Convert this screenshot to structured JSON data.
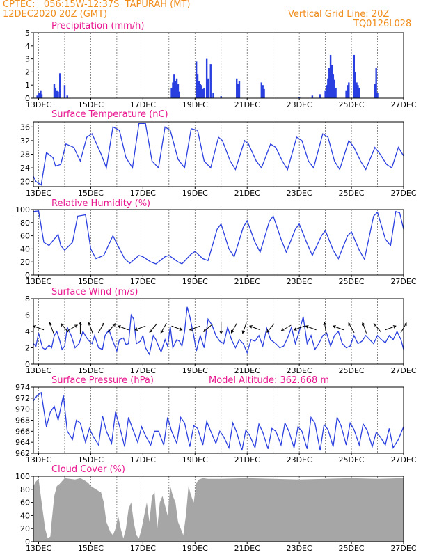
{
  "header": {
    "station": "CPTEC:   056:15W-12:37S  TAPURAH (MT)",
    "datetime": "12DEC2020 20Z (GMT)",
    "grid_note": "Vertical Grid Line: 20Z",
    "product_code": "TQ0126L028"
  },
  "colors": {
    "line": "#2a3fe0",
    "title": "#e8168f",
    "header": "#f08c1a",
    "cloud": "#a6a6a6"
  },
  "x_ticks": [
    "13DEC",
    "15DEC",
    "17DEC",
    "19DEC",
    "21DEC",
    "23DEC",
    "25DEC",
    "27DEC"
  ],
  "chart_data": [
    {
      "type": "bar",
      "title": "Precipitation (mm/h)",
      "ylim": [
        0,
        5
      ],
      "yticks": [
        "0",
        "1",
        "2",
        "3",
        "4",
        "5"
      ],
      "x_range_days": [
        12.8,
        27.0
      ],
      "grid": "vertical dashed at 20Z each day",
      "points": [
        [
          12.95,
          0.2
        ],
        [
          13.02,
          0.4
        ],
        [
          13.08,
          0.6
        ],
        [
          13.12,
          0.3
        ],
        [
          13.6,
          1.1
        ],
        [
          13.65,
          0.8
        ],
        [
          13.7,
          0.6
        ],
        [
          13.75,
          0.5
        ],
        [
          13.82,
          1.9
        ],
        [
          14.0,
          1.0
        ],
        [
          14.1,
          0.2
        ],
        [
          18.1,
          0.8
        ],
        [
          18.15,
          1.2
        ],
        [
          18.2,
          1.8
        ],
        [
          18.25,
          1.3
        ],
        [
          18.3,
          1.5
        ],
        [
          18.35,
          1.1
        ],
        [
          18.4,
          0.5
        ],
        [
          19.05,
          2.8
        ],
        [
          19.1,
          1.8
        ],
        [
          19.15,
          1.3
        ],
        [
          19.2,
          1.1
        ],
        [
          19.25,
          1.0
        ],
        [
          19.3,
          0.7
        ],
        [
          19.35,
          0.8
        ],
        [
          19.45,
          3.0
        ],
        [
          19.5,
          1.5
        ],
        [
          19.6,
          2.6
        ],
        [
          19.7,
          0.4
        ],
        [
          20.0,
          0.15
        ],
        [
          20.6,
          1.5
        ],
        [
          20.65,
          1.1
        ],
        [
          20.7,
          1.3
        ],
        [
          21.55,
          1.2
        ],
        [
          21.6,
          1.0
        ],
        [
          21.65,
          0.7
        ],
        [
          23.0,
          0.1
        ],
        [
          23.5,
          0.2
        ],
        [
          23.8,
          0.3
        ],
        [
          24.0,
          0.6
        ],
        [
          24.05,
          1.0
        ],
        [
          24.1,
          1.5
        ],
        [
          24.15,
          2.3
        ],
        [
          24.2,
          3.3
        ],
        [
          24.25,
          2.5
        ],
        [
          24.3,
          1.8
        ],
        [
          24.35,
          1.4
        ],
        [
          24.4,
          0.8
        ],
        [
          24.8,
          0.6
        ],
        [
          24.85,
          1.0
        ],
        [
          24.9,
          1.2
        ],
        [
          25.1,
          3.3
        ],
        [
          25.15,
          2.0
        ],
        [
          25.2,
          1.2
        ],
        [
          25.25,
          1.0
        ],
        [
          25.3,
          0.8
        ],
        [
          25.9,
          1.1
        ],
        [
          25.95,
          2.3
        ],
        [
          26.0,
          0.4
        ]
      ]
    },
    {
      "type": "line",
      "title": "Surface Temperature (nC)",
      "ylim": [
        18.5,
        37.5
      ],
      "yticks": [
        "20",
        "24",
        "28",
        "32",
        "36"
      ],
      "x": [
        12.8,
        12.9,
        13.1,
        13.3,
        13.55,
        13.65,
        13.85,
        14.05,
        14.35,
        14.6,
        14.85,
        15.05,
        15.4,
        15.6,
        15.85,
        16.1,
        16.35,
        16.6,
        16.85,
        17.1,
        17.35,
        17.6,
        17.85,
        18.05,
        18.35,
        18.6,
        18.85,
        19.1,
        19.35,
        19.6,
        19.9,
        20.05,
        20.35,
        20.55,
        20.9,
        21.05,
        21.35,
        21.55,
        21.9,
        22.1,
        22.35,
        22.55,
        22.9,
        23.1,
        23.35,
        23.55,
        23.9,
        24.1,
        24.35,
        24.55,
        24.9,
        25.1,
        25.35,
        25.55,
        25.9,
        26.1,
        26.35,
        26.55,
        26.8,
        27.0
      ],
      "values": [
        21.5,
        20,
        19,
        28.5,
        27,
        24.5,
        25,
        31,
        30,
        26,
        33,
        34,
        28,
        24,
        36,
        35,
        27,
        24,
        37,
        37,
        26,
        24,
        36,
        35,
        26.5,
        24,
        35.5,
        35,
        26,
        24,
        33,
        32,
        26,
        23.5,
        32,
        31,
        26,
        24,
        31,
        30,
        26,
        23.5,
        33,
        32,
        26,
        24,
        34,
        33,
        26,
        23.5,
        32,
        30,
        26,
        23.5,
        30,
        28,
        25,
        24,
        30,
        27.5
      ]
    },
    {
      "type": "line",
      "title": "Relative Humidity (%)",
      "ylim": [
        0,
        100
      ],
      "yticks": [
        "0",
        "20",
        "40",
        "60",
        "80",
        "100"
      ],
      "x": [
        12.8,
        13.0,
        13.2,
        13.4,
        13.6,
        13.75,
        13.85,
        14.0,
        14.3,
        14.5,
        14.8,
        15.0,
        15.2,
        15.5,
        15.85,
        16.0,
        16.3,
        16.5,
        16.85,
        17.0,
        17.3,
        17.5,
        17.85,
        18.0,
        18.35,
        18.5,
        18.85,
        19.0,
        19.3,
        19.5,
        19.85,
        20.0,
        20.3,
        20.5,
        20.85,
        21.0,
        21.3,
        21.5,
        21.85,
        22.0,
        22.3,
        22.5,
        22.85,
        23.0,
        23.3,
        23.5,
        23.85,
        24.0,
        24.3,
        24.5,
        24.85,
        25.0,
        25.3,
        25.5,
        25.85,
        26.0,
        26.3,
        26.5,
        26.7,
        26.85,
        27.0
      ],
      "values": [
        97,
        98,
        50,
        45,
        55,
        62,
        45,
        38,
        50,
        90,
        92,
        40,
        25,
        30,
        60,
        48,
        25,
        18,
        30,
        28,
        20,
        17,
        28,
        30,
        20,
        17,
        32,
        36,
        25,
        22,
        70,
        78,
        40,
        28,
        73,
        83,
        50,
        35,
        82,
        90,
        55,
        35,
        70,
        78,
        48,
        30,
        60,
        68,
        38,
        25,
        60,
        66,
        38,
        24,
        90,
        96,
        55,
        45,
        97,
        95,
        70
      ]
    },
    {
      "type": "line",
      "title": "Surface Wind (m/s)",
      "ylim": [
        0,
        8
      ],
      "yticks": [
        "0",
        "2",
        "4",
        "6",
        "8"
      ],
      "x": [
        12.8,
        12.9,
        13.0,
        13.15,
        13.25,
        13.4,
        13.5,
        13.6,
        13.7,
        13.8,
        13.9,
        14.0,
        14.1,
        14.25,
        14.4,
        14.55,
        14.7,
        14.85,
        14.95,
        15.05,
        15.15,
        15.3,
        15.45,
        15.55,
        15.7,
        15.85,
        16.0,
        16.1,
        16.25,
        16.35,
        16.45,
        16.55,
        16.65,
        16.75,
        16.9,
        17.0,
        17.1,
        17.25,
        17.4,
        17.5,
        17.6,
        17.7,
        17.85,
        17.95,
        18.05,
        18.15,
        18.3,
        18.4,
        18.5,
        18.6,
        18.7,
        18.8,
        18.95,
        19.05,
        19.2,
        19.35,
        19.5,
        19.65,
        19.8,
        19.95,
        20.1,
        20.25,
        20.4,
        20.55,
        20.7,
        20.85,
        21.0,
        21.15,
        21.3,
        21.45,
        21.6,
        21.75,
        21.9,
        22.1,
        22.25,
        22.4,
        22.55,
        22.7,
        22.85,
        23.0,
        23.15,
        23.3,
        23.45,
        23.6,
        23.75,
        23.9,
        24.05,
        24.2,
        24.35,
        24.5,
        24.65,
        24.8,
        24.95,
        25.1,
        25.25,
        25.4,
        25.55,
        25.7,
        25.85,
        26.0,
        26.15,
        26.3,
        26.45,
        26.6,
        26.75,
        26.9,
        27.0
      ],
      "values": [
        2.5,
        2.2,
        3.8,
        2.0,
        1.8,
        2.3,
        2.0,
        3.5,
        4.0,
        3.0,
        1.8,
        2.2,
        4.5,
        3.5,
        2.0,
        2.5,
        4.0,
        3.2,
        2.8,
        2.5,
        3.5,
        2.0,
        1.8,
        3.5,
        4.2,
        2.8,
        1.6,
        3.0,
        3.2,
        2.4,
        2.5,
        6.0,
        5.5,
        2.5,
        2.8,
        3.5,
        2.0,
        1.2,
        3.5,
        3.0,
        2.2,
        1.5,
        3.0,
        2.2,
        4.6,
        2.0,
        3.0,
        2.8,
        2.2,
        4.0,
        7.0,
        5.8,
        3.5,
        1.6,
        3.5,
        2.0,
        5.5,
        4.8,
        3.5,
        2.8,
        2.5,
        4.5,
        3.0,
        2.0,
        3.0,
        2.5,
        1.4,
        3.0,
        2.8,
        3.5,
        2.2,
        4.4,
        3.0,
        2.5,
        2.0,
        2.2,
        3.2,
        4.5,
        2.5,
        4.0,
        5.8,
        2.5,
        3.5,
        1.8,
        2.5,
        3.5,
        3.8,
        2.2,
        3.5,
        4.0,
        2.5,
        2.0,
        2.2,
        3.5,
        2.5,
        2.8,
        3.5,
        3.0,
        2.5,
        3.5,
        3.0,
        2.6,
        3.5,
        3.0,
        4.0,
        3.0,
        1.8
      ],
      "arrows": [
        [
          13.0,
          200
        ],
        [
          13.5,
          250
        ],
        [
          14.0,
          230
        ],
        [
          14.3,
          330
        ],
        [
          14.6,
          270
        ],
        [
          15.0,
          250
        ],
        [
          15.4,
          300
        ],
        [
          15.8,
          310
        ],
        [
          16.25,
          200
        ],
        [
          16.9,
          160
        ],
        [
          17.4,
          130
        ],
        [
          17.8,
          120
        ],
        [
          18.3,
          20
        ],
        [
          19.0,
          160
        ],
        [
          19.5,
          140
        ],
        [
          20.0,
          90
        ],
        [
          20.5,
          120
        ],
        [
          20.9,
          110
        ],
        [
          21.3,
          200
        ],
        [
          21.9,
          130
        ],
        [
          22.5,
          150
        ],
        [
          23.0,
          160
        ],
        [
          23.45,
          200
        ],
        [
          24.0,
          260
        ],
        [
          24.5,
          200
        ],
        [
          25.0,
          240
        ],
        [
          25.5,
          250
        ],
        [
          26.0,
          230
        ],
        [
          26.5,
          340
        ],
        [
          27.0,
          300
        ]
      ]
    },
    {
      "type": "line",
      "title": "Surface Pressure (hPa)",
      "subtitle": "Model Altitude: 362.668 m",
      "ylim": [
        962,
        974
      ],
      "yticks": [
        "962",
        "964",
        "966",
        "968",
        "970",
        "972",
        "974"
      ],
      "x": [
        12.8,
        12.95,
        13.1,
        13.3,
        13.45,
        13.6,
        13.75,
        13.95,
        14.1,
        14.3,
        14.45,
        14.6,
        14.8,
        14.95,
        15.1,
        15.3,
        15.45,
        15.6,
        15.8,
        15.95,
        16.1,
        16.3,
        16.45,
        16.6,
        16.8,
        16.95,
        17.1,
        17.3,
        17.45,
        17.6,
        17.8,
        17.95,
        18.1,
        18.3,
        18.45,
        18.6,
        18.8,
        18.95,
        19.1,
        19.3,
        19.45,
        19.6,
        19.8,
        19.95,
        20.1,
        20.3,
        20.45,
        20.6,
        20.8,
        20.95,
        21.1,
        21.3,
        21.45,
        21.6,
        21.8,
        21.95,
        22.1,
        22.3,
        22.45,
        22.6,
        22.8,
        22.95,
        23.1,
        23.3,
        23.45,
        23.6,
        23.8,
        23.95,
        24.1,
        24.3,
        24.45,
        24.6,
        24.8,
        24.95,
        25.1,
        25.3,
        25.45,
        25.6,
        25.8,
        25.95,
        26.1,
        26.3,
        26.45,
        26.6,
        26.8,
        27.0
      ],
      "values": [
        971.5,
        972.5,
        973.0,
        966.8,
        969.5,
        970.5,
        968.0,
        972.5,
        966.0,
        964.5,
        968.0,
        967.5,
        964.0,
        966.5,
        965.0,
        963.5,
        968.8,
        966.0,
        963.8,
        969.5,
        967.0,
        963.2,
        968.5,
        966.5,
        964.0,
        966.8,
        965.2,
        963.5,
        966.0,
        966.0,
        963.5,
        968.5,
        966.0,
        963.8,
        968.5,
        967.5,
        963.2,
        967.0,
        966.5,
        963.5,
        967.8,
        966.0,
        963.8,
        966.0,
        965.0,
        963.0,
        967.5,
        965.8,
        962.5,
        966.2,
        965.2,
        963.0,
        967.3,
        965.8,
        962.8,
        966.5,
        966.0,
        963.5,
        967.5,
        966.0,
        963.0,
        966.8,
        966.0,
        962.8,
        968.5,
        967.5,
        962.5,
        967.2,
        966.3,
        963.2,
        968.5,
        967.0,
        963.5,
        967.5,
        966.3,
        963.5,
        967.3,
        966.2,
        963.2,
        965.8,
        965.0,
        963.5,
        966.5,
        963.0,
        964.5,
        966.8
      ]
    },
    {
      "type": "area",
      "title": "Cloud Cover (%)",
      "ylim": [
        0,
        100
      ],
      "yticks": [
        "0",
        "20",
        "40",
        "60",
        "80",
        "100"
      ],
      "x": [
        12.8,
        12.9,
        13.0,
        13.05,
        13.15,
        13.25,
        13.35,
        13.45,
        13.5,
        13.6,
        13.7,
        13.8,
        14.0,
        14.2,
        14.4,
        14.6,
        14.75,
        14.9,
        15.0,
        15.2,
        15.4,
        15.5,
        15.6,
        15.75,
        15.85,
        15.95,
        16.05,
        16.15,
        16.25,
        16.35,
        16.45,
        16.55,
        16.65,
        16.75,
        16.85,
        16.95,
        17.05,
        17.15,
        17.25,
        17.35,
        17.45,
        17.55,
        17.65,
        17.75,
        17.85,
        17.95,
        18.05,
        18.15,
        18.25,
        18.35,
        18.45,
        18.55,
        18.65,
        18.75,
        18.85,
        18.95,
        19.05,
        19.15,
        19.3,
        19.5,
        20.0,
        21.0,
        22.0,
        23.0,
        24.0,
        25.0,
        26.0,
        27.0
      ],
      "values": [
        85,
        92,
        96,
        80,
        50,
        20,
        5,
        8,
        30,
        70,
        85,
        88,
        97,
        96,
        95,
        97,
        94,
        90,
        85,
        80,
        75,
        60,
        30,
        15,
        10,
        20,
        40,
        20,
        5,
        20,
        50,
        60,
        30,
        10,
        5,
        20,
        40,
        60,
        30,
        70,
        75,
        20,
        60,
        70,
        55,
        40,
        85,
        70,
        60,
        30,
        20,
        10,
        40,
        85,
        70,
        60,
        90,
        95,
        97,
        96,
        96,
        97,
        96,
        95,
        96,
        97,
        96,
        97
      ]
    }
  ]
}
